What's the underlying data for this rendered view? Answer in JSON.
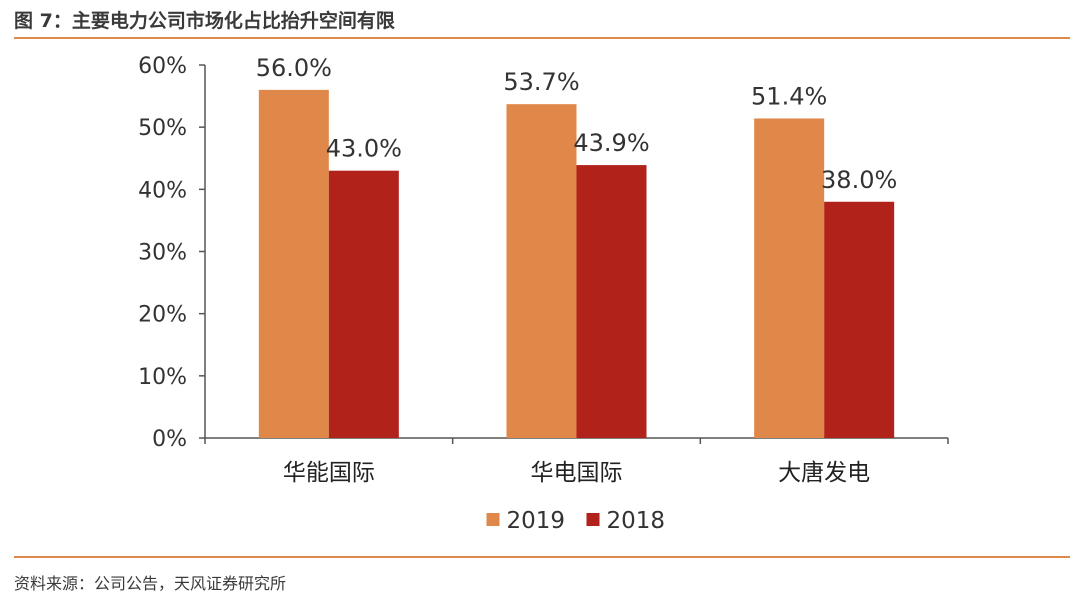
{
  "header": {
    "title": "图 7：主要电力公司市场化占比抬升空间有限"
  },
  "footer": {
    "source": "资料来源：公司公告，天风证券研究所"
  },
  "colors": {
    "accent_rule": "#e0894c",
    "series_2019": "#e0874a",
    "series_2018": "#b0221a",
    "axis": "#555555"
  },
  "chart_data": {
    "type": "bar",
    "categories": [
      "华能国际",
      "华电国际",
      "大唐发电"
    ],
    "series": [
      {
        "name": "2019",
        "values": [
          56.0,
          53.7,
          51.4
        ],
        "color": "#e0874a"
      },
      {
        "name": "2018",
        "values": [
          43.0,
          43.9,
          38.0
        ],
        "color": "#b0221a"
      }
    ],
    "data_labels": [
      [
        "56.0%",
        "53.7%",
        "51.4%"
      ],
      [
        "43.0%",
        "43.9%",
        "38.0%"
      ]
    ],
    "ylim": [
      0,
      60
    ],
    "yticks": [
      0,
      10,
      20,
      30,
      40,
      50,
      60
    ],
    "ytick_labels": [
      "0%",
      "10%",
      "20%",
      "30%",
      "40%",
      "50%",
      "60%"
    ],
    "legend_position": "bottom",
    "grid": false
  }
}
